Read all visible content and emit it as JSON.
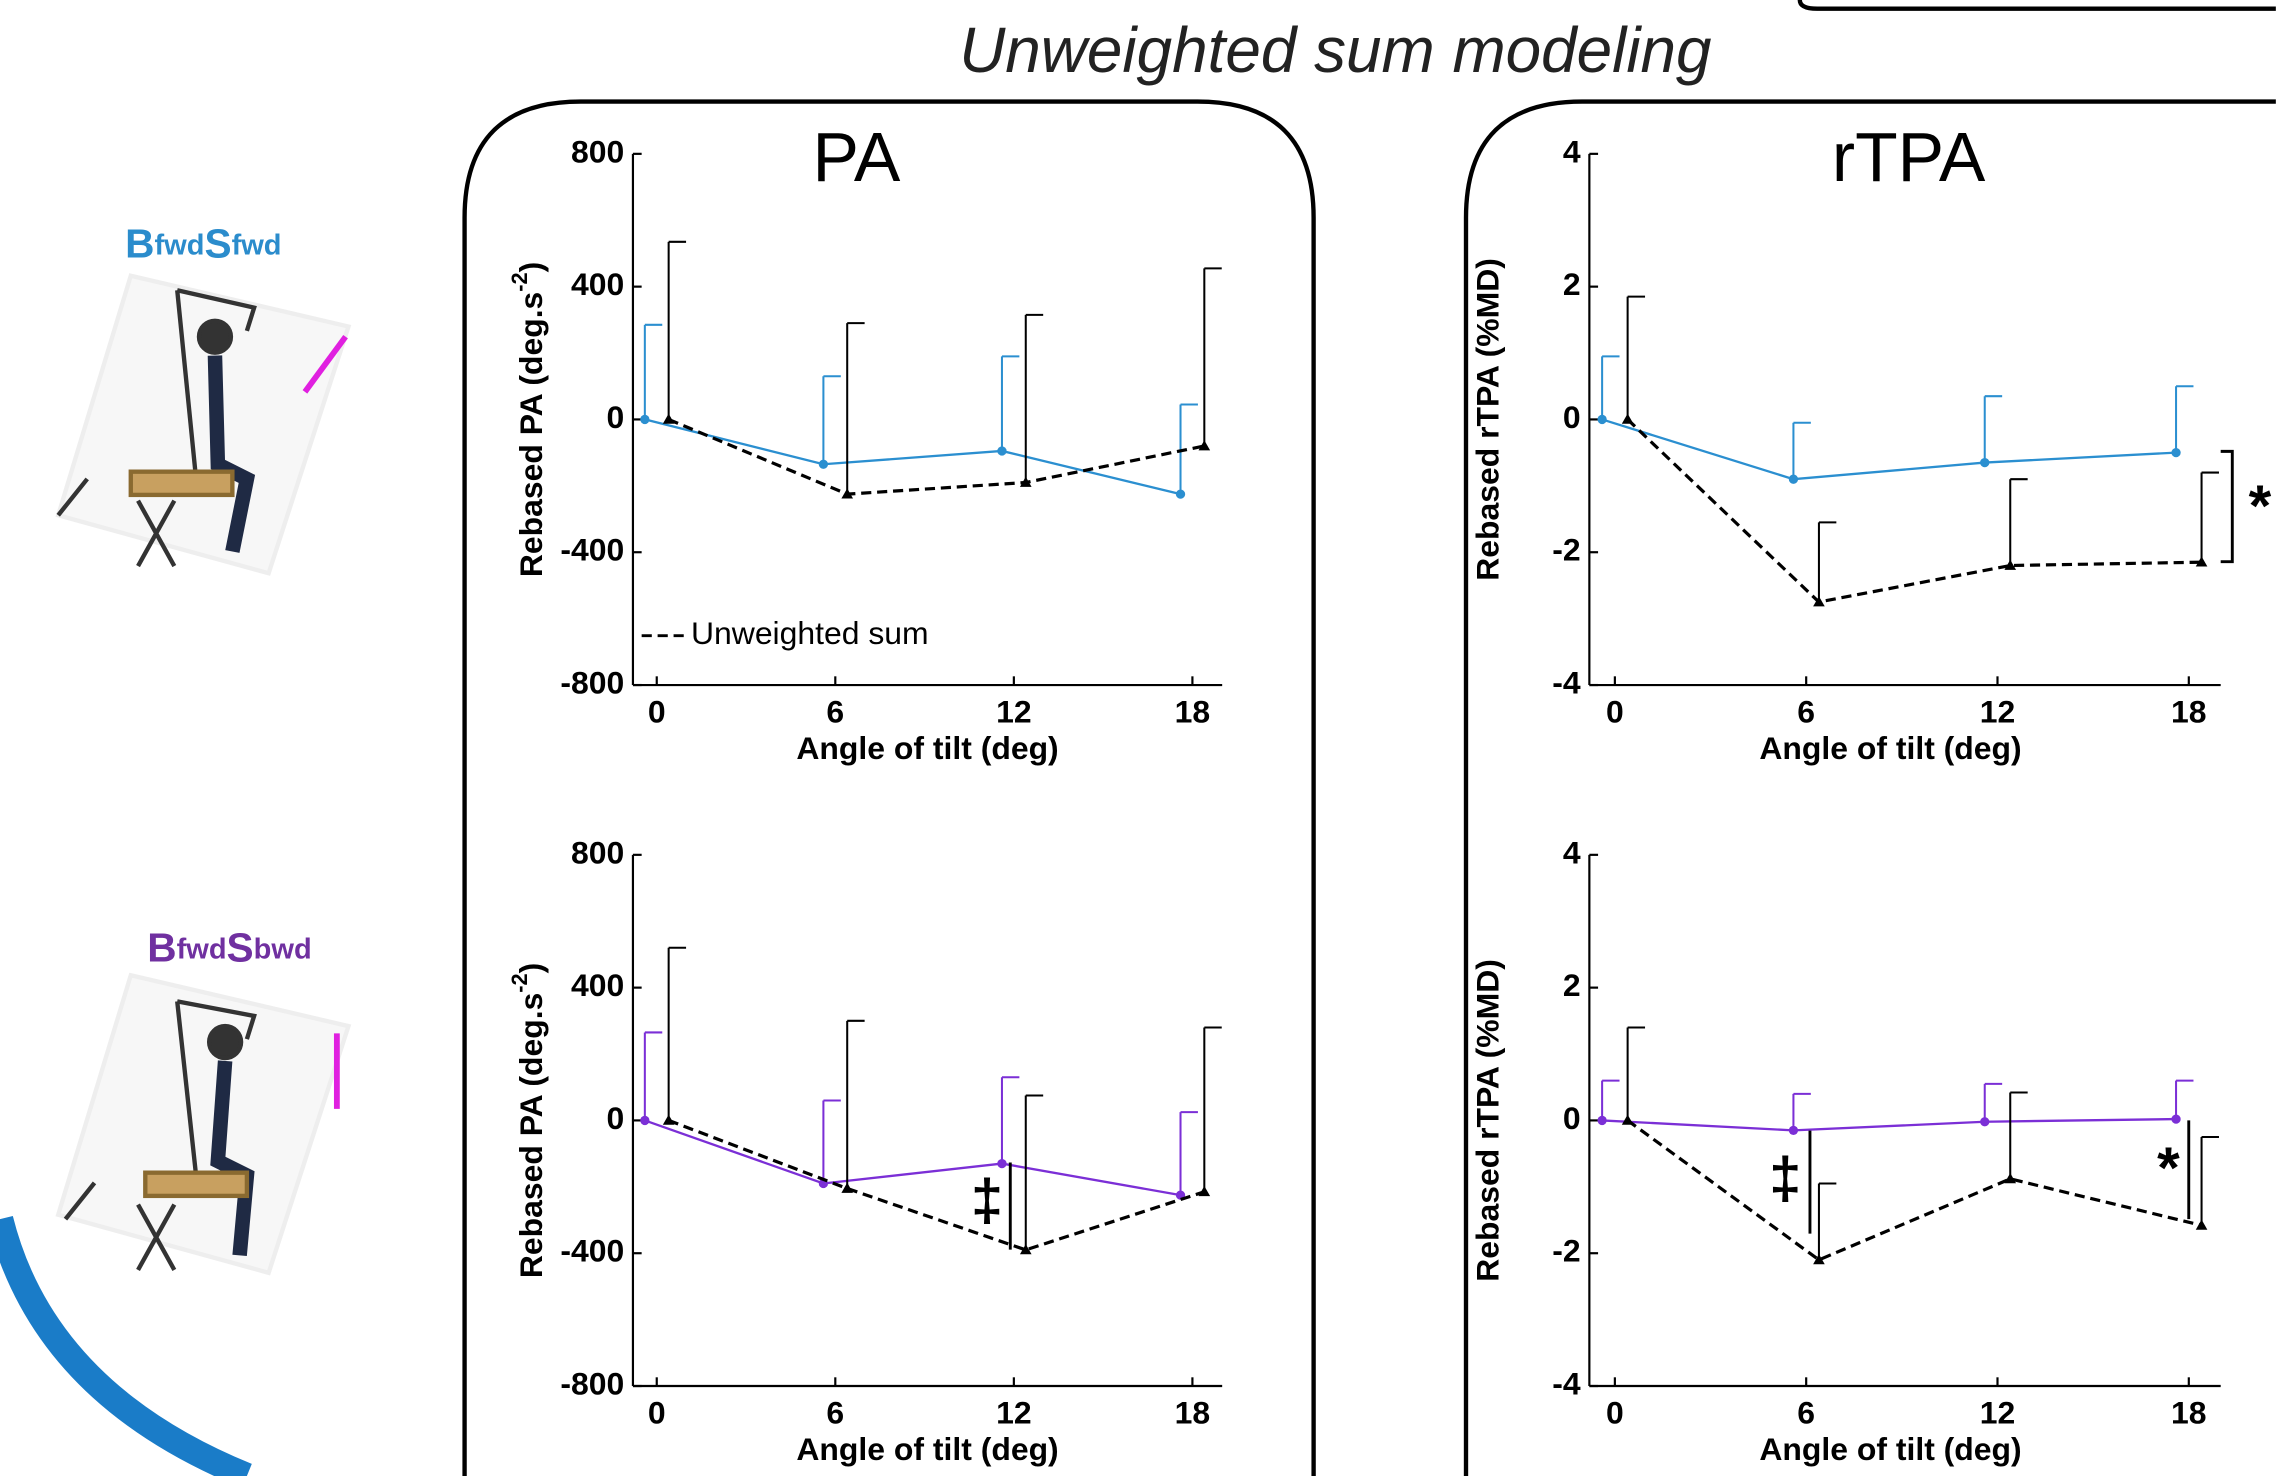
{
  "title": "Unweighted sum modeling",
  "panels": [
    {
      "title": "PA"
    },
    {
      "title": "rTPA"
    }
  ],
  "conditions": [
    {
      "parts": [
        "B",
        "fwd",
        "S",
        "fwd"
      ],
      "color": "#2b8ccc"
    },
    {
      "parts": [
        "B",
        "fwd",
        "S",
        "bwd"
      ],
      "color": "#7030a0"
    }
  ],
  "chart_data": [
    {
      "type": "line",
      "xlabel": "Angle of tilt (deg)",
      "ylabel": [
        "Rebased PA (deg.s",
        "-2",
        ")"
      ],
      "x": [
        0,
        6,
        12,
        18
      ],
      "xlim": [
        -0.8,
        19
      ],
      "xticks": [
        0,
        6,
        12,
        18
      ],
      "ylim": [
        -800,
        800
      ],
      "yticks": [
        800,
        400,
        0,
        -400,
        -800
      ],
      "legend": "lower left",
      "series": [
        {
          "color": "#2b8fd0",
          "linestyle": "solid",
          "marker": "circle",
          "values": [
            0,
            -135,
            -95,
            -225
          ],
          "errors": [
            285,
            265,
            285,
            270
          ]
        },
        {
          "name": "Unweighted sum",
          "color": "#000000",
          "linestyle": "dashed",
          "marker": "triangle",
          "values": [
            0,
            -225,
            -190,
            -80
          ],
          "errors": [
            535,
            515,
            505,
            535
          ]
        }
      ],
      "annotations": []
    },
    {
      "type": "line",
      "xlabel": "Angle of tilt (deg)",
      "ylabel": [
        "Rebased rTPA (%MD)"
      ],
      "x": [
        0,
        6,
        12,
        18
      ],
      "xlim": [
        -0.8,
        19
      ],
      "xticks": [
        0,
        6,
        12,
        18
      ],
      "ylim": [
        -4,
        4
      ],
      "yticks": [
        4,
        2,
        0,
        -2,
        -4
      ],
      "series": [
        {
          "color": "#2b8fd0",
          "linestyle": "solid",
          "marker": "circle",
          "values": [
            0,
            -0.9,
            -0.65,
            -0.5
          ],
          "errors": [
            0.95,
            0.85,
            1.0,
            1.0
          ]
        },
        {
          "color": "#000000",
          "linestyle": "dashed",
          "marker": "triangle",
          "values": [
            0,
            -2.75,
            -2.2,
            -2.15
          ],
          "errors": [
            1.85,
            1.2,
            1.3,
            1.35
          ]
        }
      ],
      "annotations": [
        "*"
      ]
    },
    {
      "type": "line",
      "xlabel": "Angle of tilt (deg)",
      "ylabel": [
        "Rebased PA (deg.s",
        "-2",
        ")"
      ],
      "x": [
        0,
        6,
        12,
        18
      ],
      "xlim": [
        -0.8,
        19
      ],
      "xticks": [
        0,
        6,
        12,
        18
      ],
      "ylim": [
        -800,
        800
      ],
      "yticks": [
        800,
        400,
        0,
        -400,
        -800
      ],
      "series": [
        {
          "color": "#7b2fd6",
          "linestyle": "solid",
          "marker": "circle",
          "values": [
            0,
            -190,
            -130,
            -225
          ],
          "errors": [
            265,
            250,
            260,
            250
          ]
        },
        {
          "color": "#000000",
          "linestyle": "dashed",
          "marker": "triangle",
          "values": [
            0,
            -205,
            -390,
            -215
          ],
          "errors": [
            520,
            505,
            465,
            495
          ]
        }
      ],
      "annotations": [
        "‡"
      ]
    },
    {
      "type": "line",
      "xlabel": "Angle of tilt (deg)",
      "ylabel": [
        "Rebased rTPA (%MD)"
      ],
      "x": [
        0,
        6,
        12,
        18
      ],
      "xlim": [
        -0.8,
        19
      ],
      "xticks": [
        0,
        6,
        12,
        18
      ],
      "ylim": [
        -4,
        4
      ],
      "yticks": [
        4,
        2,
        0,
        -2,
        -4
      ],
      "series": [
        {
          "color": "#7b2fd6",
          "linestyle": "solid",
          "marker": "circle",
          "values": [
            0,
            -0.15,
            -0.02,
            0.02
          ],
          "errors": [
            0.6,
            0.55,
            0.57,
            0.58
          ]
        },
        {
          "color": "#000000",
          "linestyle": "dashed",
          "marker": "triangle",
          "values": [
            0,
            -2.1,
            -0.88,
            -1.58
          ],
          "errors": [
            1.4,
            1.15,
            1.3,
            1.33
          ]
        }
      ],
      "annotations": [
        "‡",
        "*"
      ]
    }
  ]
}
